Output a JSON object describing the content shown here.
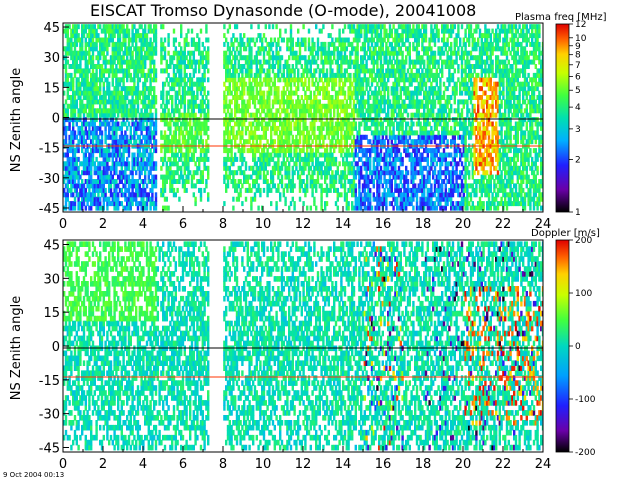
{
  "title": "EISCAT Tromso Dynasonde (O-mode),  20041008",
  "timestamp": "9 Oct 2004 00:13",
  "colors": {
    "zero_line": "#000000",
    "ref_line": "#ff3300",
    "background": "#ffffff"
  },
  "chart_data": [
    {
      "type": "heatmap",
      "panel": "top",
      "ylabel": "NS Zenith angle",
      "xlim": [
        0,
        24
      ],
      "ylim": [
        -47,
        47
      ],
      "x_ticks": [
        "0",
        "2",
        "4",
        "6",
        "8",
        "10",
        "12",
        "14",
        "16",
        "18",
        "20",
        "22",
        "24"
      ],
      "y_ticks": [
        "45",
        "30",
        "15",
        "0",
        "-15",
        "-30",
        "-45"
      ],
      "horizontal_lines": [
        {
          "y": 0,
          "color": "#000000"
        },
        {
          "y": -13.5,
          "color": "#ff3300"
        }
      ],
      "data_gaps_hours": [
        [
          4.6,
          4.85
        ],
        [
          7.2,
          7.95
        ]
      ],
      "colorbar": {
        "title": "Plasma freq [MHz]",
        "scale": "log",
        "range": [
          1,
          12
        ],
        "ticks": [
          "12",
          "10",
          "9",
          "8",
          "7",
          "6",
          "5",
          "4",
          "3",
          "2",
          "1"
        ],
        "tick_values": [
          12,
          10,
          9,
          8,
          7,
          6,
          5,
          4,
          3,
          2,
          1
        ]
      }
    },
    {
      "type": "heatmap",
      "panel": "bottom",
      "ylabel": "NS Zenith angle",
      "xlim": [
        0,
        24
      ],
      "ylim": [
        -47,
        47
      ],
      "x_ticks": [
        "0",
        "2",
        "4",
        "6",
        "8",
        "10",
        "12",
        "14",
        "16",
        "18",
        "20",
        "22",
        "24"
      ],
      "y_ticks": [
        "45",
        "30",
        "15",
        "0",
        "-15",
        "-30",
        "-45"
      ],
      "horizontal_lines": [
        {
          "y": 0,
          "color": "#000000"
        },
        {
          "y": -13.5,
          "color": "#ff3300"
        }
      ],
      "data_gaps_hours": [
        [
          7.2,
          7.95
        ]
      ],
      "colorbar": {
        "title": "Doppler [m/s]",
        "scale": "linear",
        "range": [
          -200,
          200
        ],
        "ticks": [
          "200",
          "100",
          "0",
          "-100",
          "-200"
        ],
        "tick_values": [
          200,
          100,
          0,
          -100,
          -200
        ]
      }
    }
  ]
}
